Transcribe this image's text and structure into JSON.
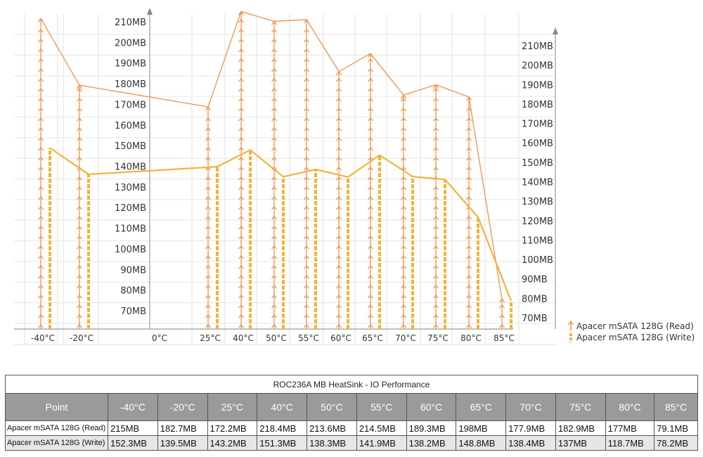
{
  "chart_data": {
    "type": "line",
    "categories": [
      "-40°C",
      "-20°C",
      "0°C",
      "25°C",
      "40°C",
      "50°C",
      "55°C",
      "60°C",
      "65°C",
      "70°C",
      "75°C",
      "80°C",
      "85°C"
    ],
    "x_category_labels": [
      "-40°C",
      "-20°C",
      "0°C",
      "25°C",
      "40°C",
      "50°C",
      "55°C",
      "60°C",
      "65°C",
      "70°C",
      "75°C",
      "80°C",
      "85°C"
    ],
    "series": [
      {
        "name": "Apacer mSATA 128G (Read)",
        "marker": "arrow",
        "color": "#f0924a",
        "values": [
          215,
          182.7,
          null,
          172.2,
          218.4,
          213.6,
          214.5,
          189.3,
          198,
          177.9,
          182.9,
          177,
          79.1
        ]
      },
      {
        "name": "Apacer mSATA 128G (Write)",
        "marker": "dashed-bar",
        "color": "#f0b43c",
        "values": [
          152.3,
          139.5,
          null,
          143.2,
          151.3,
          138.3,
          141.9,
          138.2,
          148.8,
          138.4,
          137,
          118.7,
          78.2
        ]
      }
    ],
    "left_axis": {
      "unit": "MB",
      "ticks": [
        70,
        80,
        90,
        100,
        110,
        120,
        130,
        140,
        150,
        160,
        170,
        180,
        190,
        200,
        210
      ],
      "range": [
        63,
        226
      ]
    },
    "right_axis": {
      "unit": "MB",
      "ticks": [
        70,
        80,
        90,
        100,
        110,
        120,
        130,
        140,
        150,
        160,
        170,
        180,
        190,
        200,
        210
      ],
      "range": [
        64,
        222
      ]
    },
    "tick_labels": [
      "70MB",
      "80MB",
      "90MB",
      "100MB",
      "110MB",
      "120MB",
      "130MB",
      "140MB",
      "150MB",
      "160MB",
      "170MB",
      "180MB",
      "190MB",
      "200MB",
      "210MB"
    ],
    "legend_position": "bottom-right",
    "grid": true
  },
  "table": {
    "title": "ROC236A MB HeatSink - IO Performance",
    "header_label": "Point",
    "columns": [
      "-40°C",
      "-20°C",
      "25°C",
      "40°C",
      "50°C",
      "55°C",
      "60°C",
      "65°C",
      "70°C",
      "75°C",
      "80°C",
      "85°C"
    ],
    "rows": [
      {
        "label": "Apacer mSATA 128G (Read)",
        "cells": [
          "215MB",
          "182.7MB",
          "172.2MB",
          "218.4MB",
          "213.6MB",
          "214.5MB",
          "189.3MB",
          "198MB",
          "177.9MB",
          "182.9MB",
          "177MB",
          "79.1MB"
        ]
      },
      {
        "label": "Apacer mSATA 128G (Write)",
        "cells": [
          "152.3MB",
          "139.5MB",
          "143.2MB",
          "151.3MB",
          "138.3MB",
          "141.9MB",
          "138.2MB",
          "148.8MB",
          "138.4MB",
          "137MB",
          "118.7MB",
          "78.2MB"
        ]
      }
    ]
  }
}
